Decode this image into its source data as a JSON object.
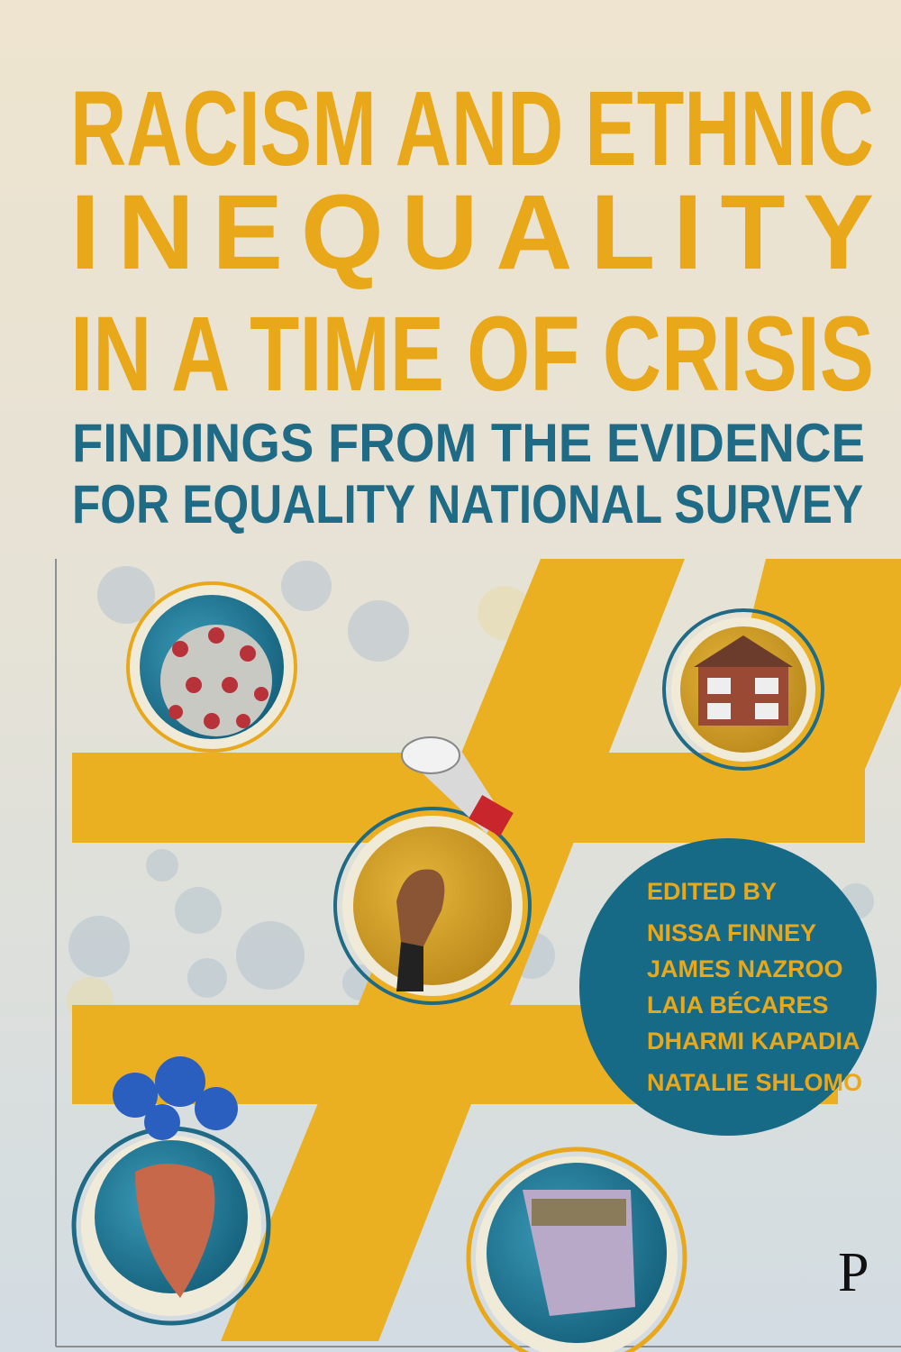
{
  "cover": {
    "title_lines": [
      "RACISM AND ETHNIC",
      "INEQUALITY",
      "IN A TIME OF CRISIS"
    ],
    "subtitle_lines": [
      "FINDINGS FROM THE EVIDENCE",
      "FOR EQUALITY NATIONAL SURVEY"
    ],
    "edited_by": "EDITED BY",
    "editors": [
      "NISSA FINNEY",
      "JAMES NAZROO",
      "LAIA BÉCARES",
      "DHARMI KAPADIA",
      "NATALIE SHLOMO"
    ],
    "publisher_logo": "P",
    "colors": {
      "title": "#e9a81a",
      "subtitle": "#1f6b86",
      "author_circle": "#176a85",
      "hash": "#ebb022",
      "background_top": "#ece3cf",
      "background_bottom": "#d3dde3"
    },
    "illustrations": [
      "coronavirus",
      "house",
      "megaphone-fist",
      "heart-with-flowers",
      "banknotes"
    ]
  }
}
